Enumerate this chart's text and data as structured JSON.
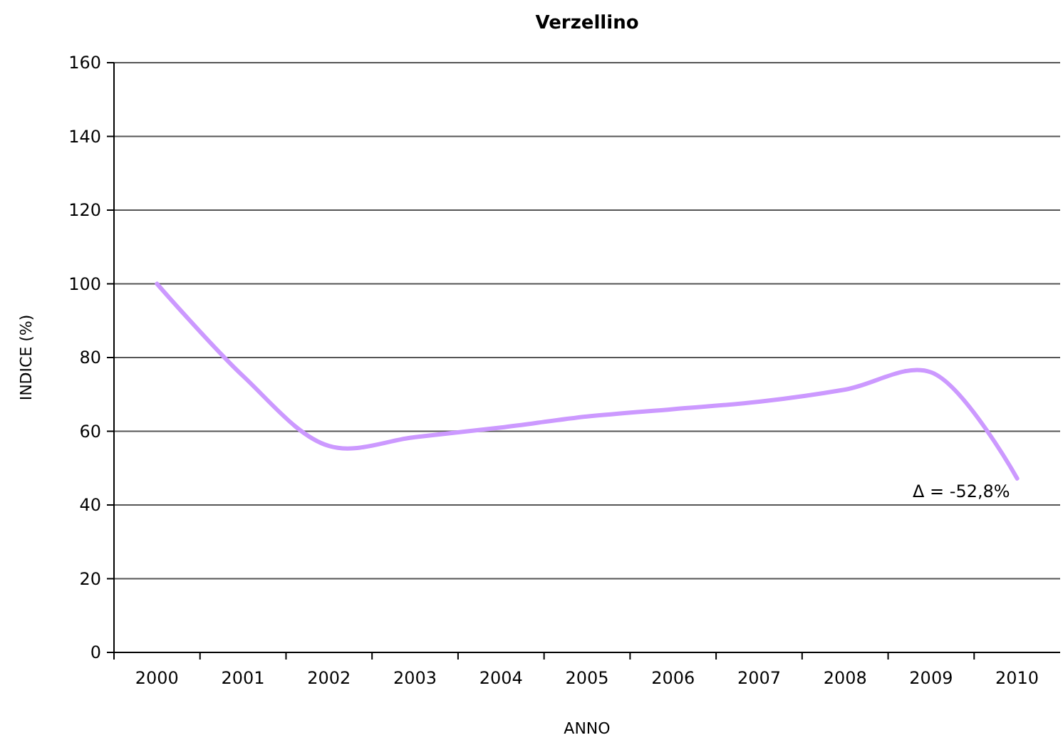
{
  "chart_data": {
    "type": "line",
    "title": "Verzellino",
    "xlabel": "ANNO",
    "ylabel": "INDICE (%)",
    "categories": [
      "2000",
      "2001",
      "2002",
      "2003",
      "2004",
      "2005",
      "2006",
      "2007",
      "2008",
      "2009",
      "2010"
    ],
    "series": [
      {
        "color": "#cc99ff",
        "values": [
          100,
          75,
          56,
          58.4,
          61,
          64,
          66,
          68,
          71.3,
          76,
          47.2
        ]
      }
    ],
    "ylim": [
      0,
      160
    ],
    "yticks": [
      0,
      20,
      40,
      60,
      80,
      100,
      120,
      140,
      160
    ],
    "grid": "y",
    "marker": "none",
    "line_style": "solid",
    "annotations": [
      {
        "text": "Δ = -52,8%",
        "x": "2010",
        "y": 47.2
      }
    ]
  }
}
